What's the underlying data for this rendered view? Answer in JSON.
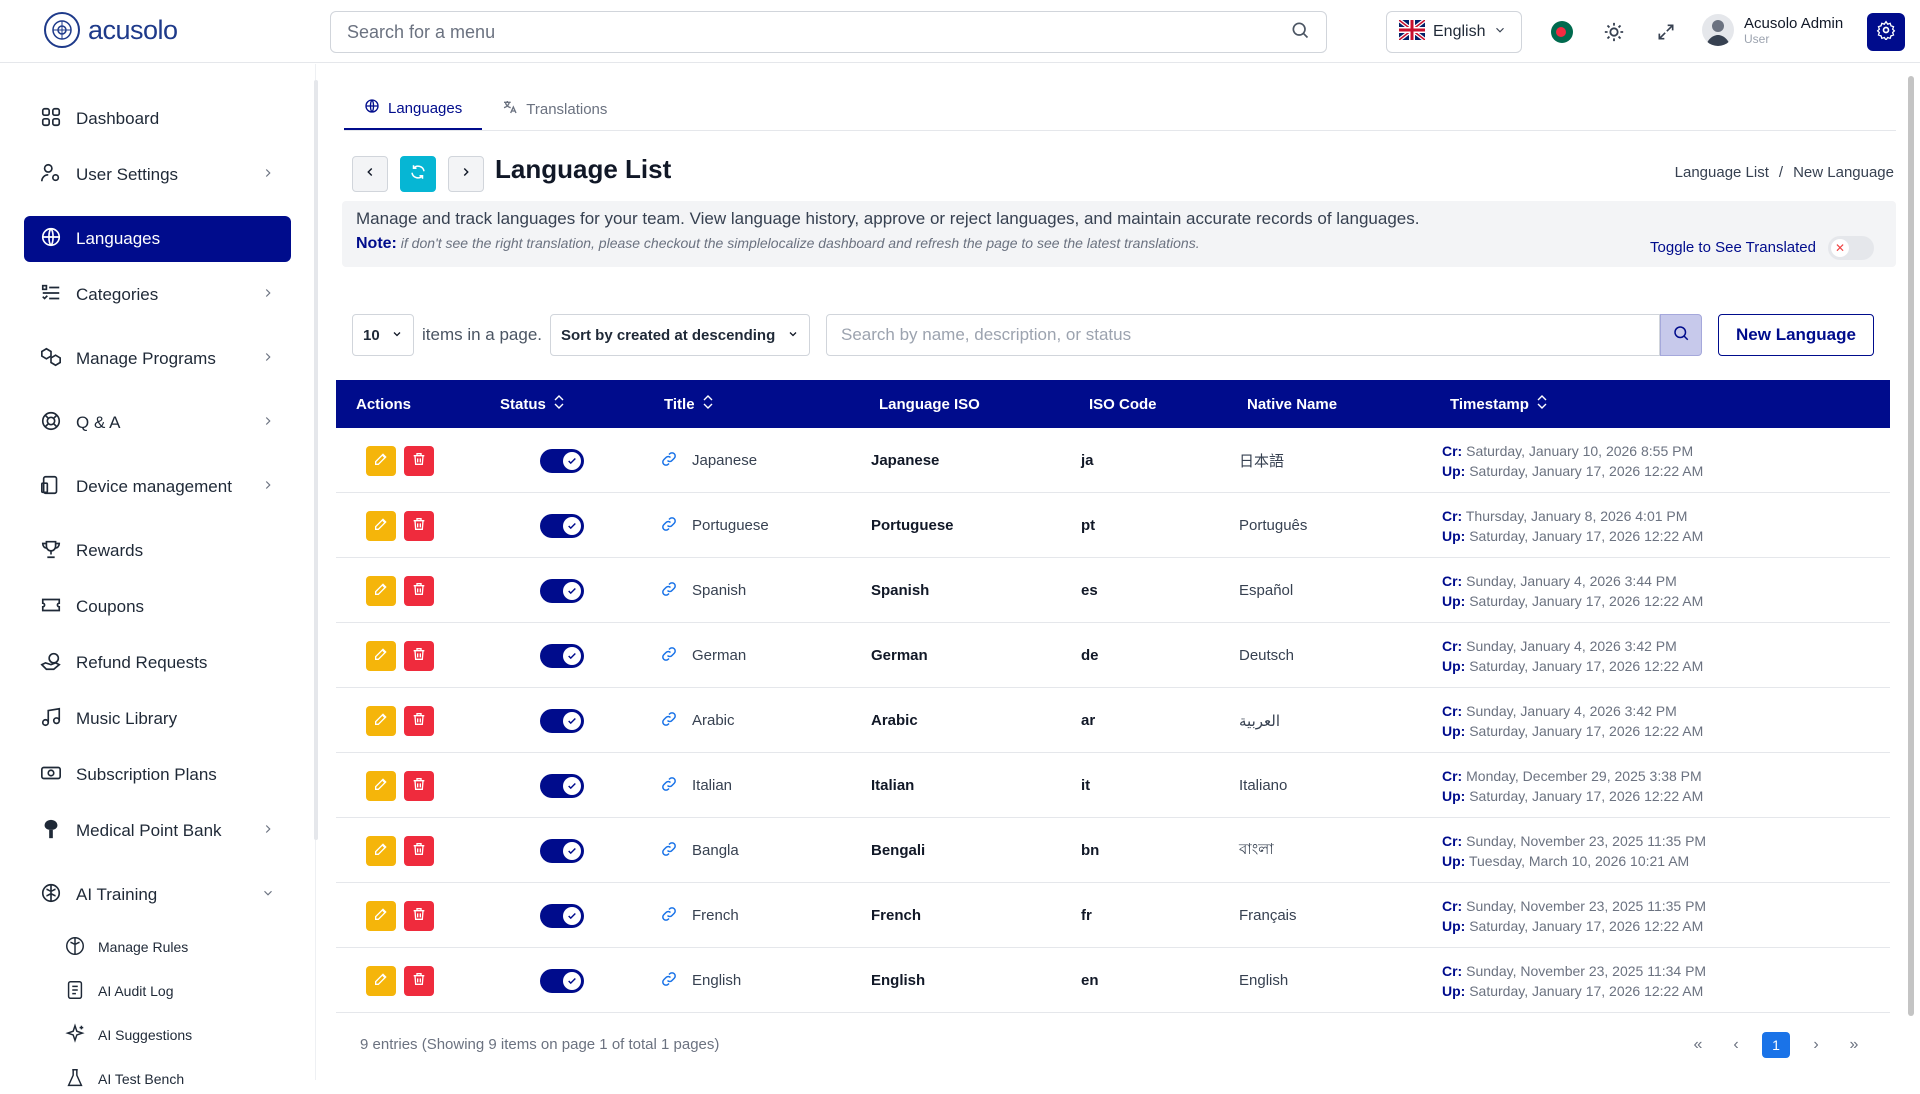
{
  "app": {
    "logo_text": "acusolo"
  },
  "topbar": {
    "search_placeholder": "Search for a menu",
    "language": "English",
    "user_name": "Acusolo Admin",
    "user_role": "User"
  },
  "sidebar": {
    "items": [
      {
        "label": "Dashboard",
        "icon": "grid-icon"
      },
      {
        "label": "User Settings",
        "icon": "user-settings-icon"
      },
      {
        "label": "Languages",
        "icon": "globe-icon"
      },
      {
        "label": "Categories",
        "icon": "list-icon"
      },
      {
        "label": "Manage Programs",
        "icon": "boxes-icon"
      },
      {
        "label": "Q & A",
        "icon": "help-icon"
      },
      {
        "label": "Device management",
        "icon": "devices-icon"
      },
      {
        "label": "Rewards",
        "icon": "trophy-icon"
      },
      {
        "label": "Coupons",
        "icon": "ticket-icon"
      },
      {
        "label": "Refund Requests",
        "icon": "refund-icon"
      },
      {
        "label": "Music Library",
        "icon": "music-icon"
      },
      {
        "label": "Subscription Plans",
        "icon": "subscription-icon"
      },
      {
        "label": "Medical Point Bank",
        "icon": "medical-icon"
      },
      {
        "label": "AI Training",
        "icon": "brain-icon"
      }
    ],
    "sub_items": [
      {
        "label": "Manage Rules"
      },
      {
        "label": "AI Audit Log"
      },
      {
        "label": "AI Suggestions"
      },
      {
        "label": "AI Test Bench"
      }
    ]
  },
  "tabs": [
    {
      "label": "Languages"
    },
    {
      "label": "Translations"
    }
  ],
  "page": {
    "title": "Language List",
    "breadcrumb": [
      "Language List",
      "/",
      "New Language"
    ],
    "description": "Manage and track languages for your team. View language history, approve or reject languages, and maintain accurate records of languages.",
    "note_label": "Note:",
    "note_text": "if don't see the right translation, please checkout the simplelocalize dashboard and refresh the page to see the latest translations.",
    "toggle_label": "Toggle to See Translated"
  },
  "controls": {
    "per_page": "10",
    "per_page_label": "items in a page.",
    "sort": "Sort by created at descending",
    "search_placeholder": "Search by name, description, or status",
    "new_button": "New Language"
  },
  "table": {
    "headers": [
      "Actions",
      "Status",
      "Title",
      "Language ISO",
      "ISO Code",
      "Native Name",
      "Timestamp"
    ],
    "cr_label": "Cr:",
    "up_label": "Up:",
    "rows": [
      {
        "title": "Japanese",
        "iso": "Japanese",
        "code": "ja",
        "native": "日本語",
        "cr": "Saturday, January 10, 2026 8:55 PM",
        "up": "Saturday, January 17, 2026 12:22 AM"
      },
      {
        "title": "Portuguese",
        "iso": "Portuguese",
        "code": "pt",
        "native": "Português",
        "cr": "Thursday, January 8, 2026 4:01 PM",
        "up": "Saturday, January 17, 2026 12:22 AM"
      },
      {
        "title": "Spanish",
        "iso": "Spanish",
        "code": "es",
        "native": "Español",
        "cr": "Sunday, January 4, 2026 3:44 PM",
        "up": "Saturday, January 17, 2026 12:22 AM"
      },
      {
        "title": "German",
        "iso": "German",
        "code": "de",
        "native": "Deutsch",
        "cr": "Sunday, January 4, 2026 3:42 PM",
        "up": "Saturday, January 17, 2026 12:22 AM"
      },
      {
        "title": "Arabic",
        "iso": "Arabic",
        "code": "ar",
        "native": "العربية",
        "cr": "Sunday, January 4, 2026 3:42 PM",
        "up": "Saturday, January 17, 2026 12:22 AM"
      },
      {
        "title": "Italian",
        "iso": "Italian",
        "code": "it",
        "native": "Italiano",
        "cr": "Monday, December 29, 2025 3:38 PM",
        "up": "Saturday, January 17, 2026 12:22 AM"
      },
      {
        "title": "Bangla",
        "iso": "Bengali",
        "code": "bn",
        "native": "বাংলা",
        "cr": "Sunday, November 23, 2025 11:35 PM",
        "up": "Tuesday, March 10, 2026 10:21 AM"
      },
      {
        "title": "French",
        "iso": "French",
        "code": "fr",
        "native": "Français",
        "cr": "Sunday, November 23, 2025 11:35 PM",
        "up": "Saturday, January 17, 2026 12:22 AM"
      },
      {
        "title": "English",
        "iso": "English",
        "code": "en",
        "native": "English",
        "cr": "Sunday, November 23, 2025 11:34 PM",
        "up": "Saturday, January 17, 2026 12:22 AM"
      }
    ]
  },
  "footer": {
    "info": "9 entries (Showing 9 items on page 1 of total 1 pages)",
    "current_page": "1"
  },
  "colors": {
    "primary": "#000c8c",
    "edit": "#f5b50a",
    "delete": "#ef2b3d",
    "refresh": "#06b6d4"
  }
}
